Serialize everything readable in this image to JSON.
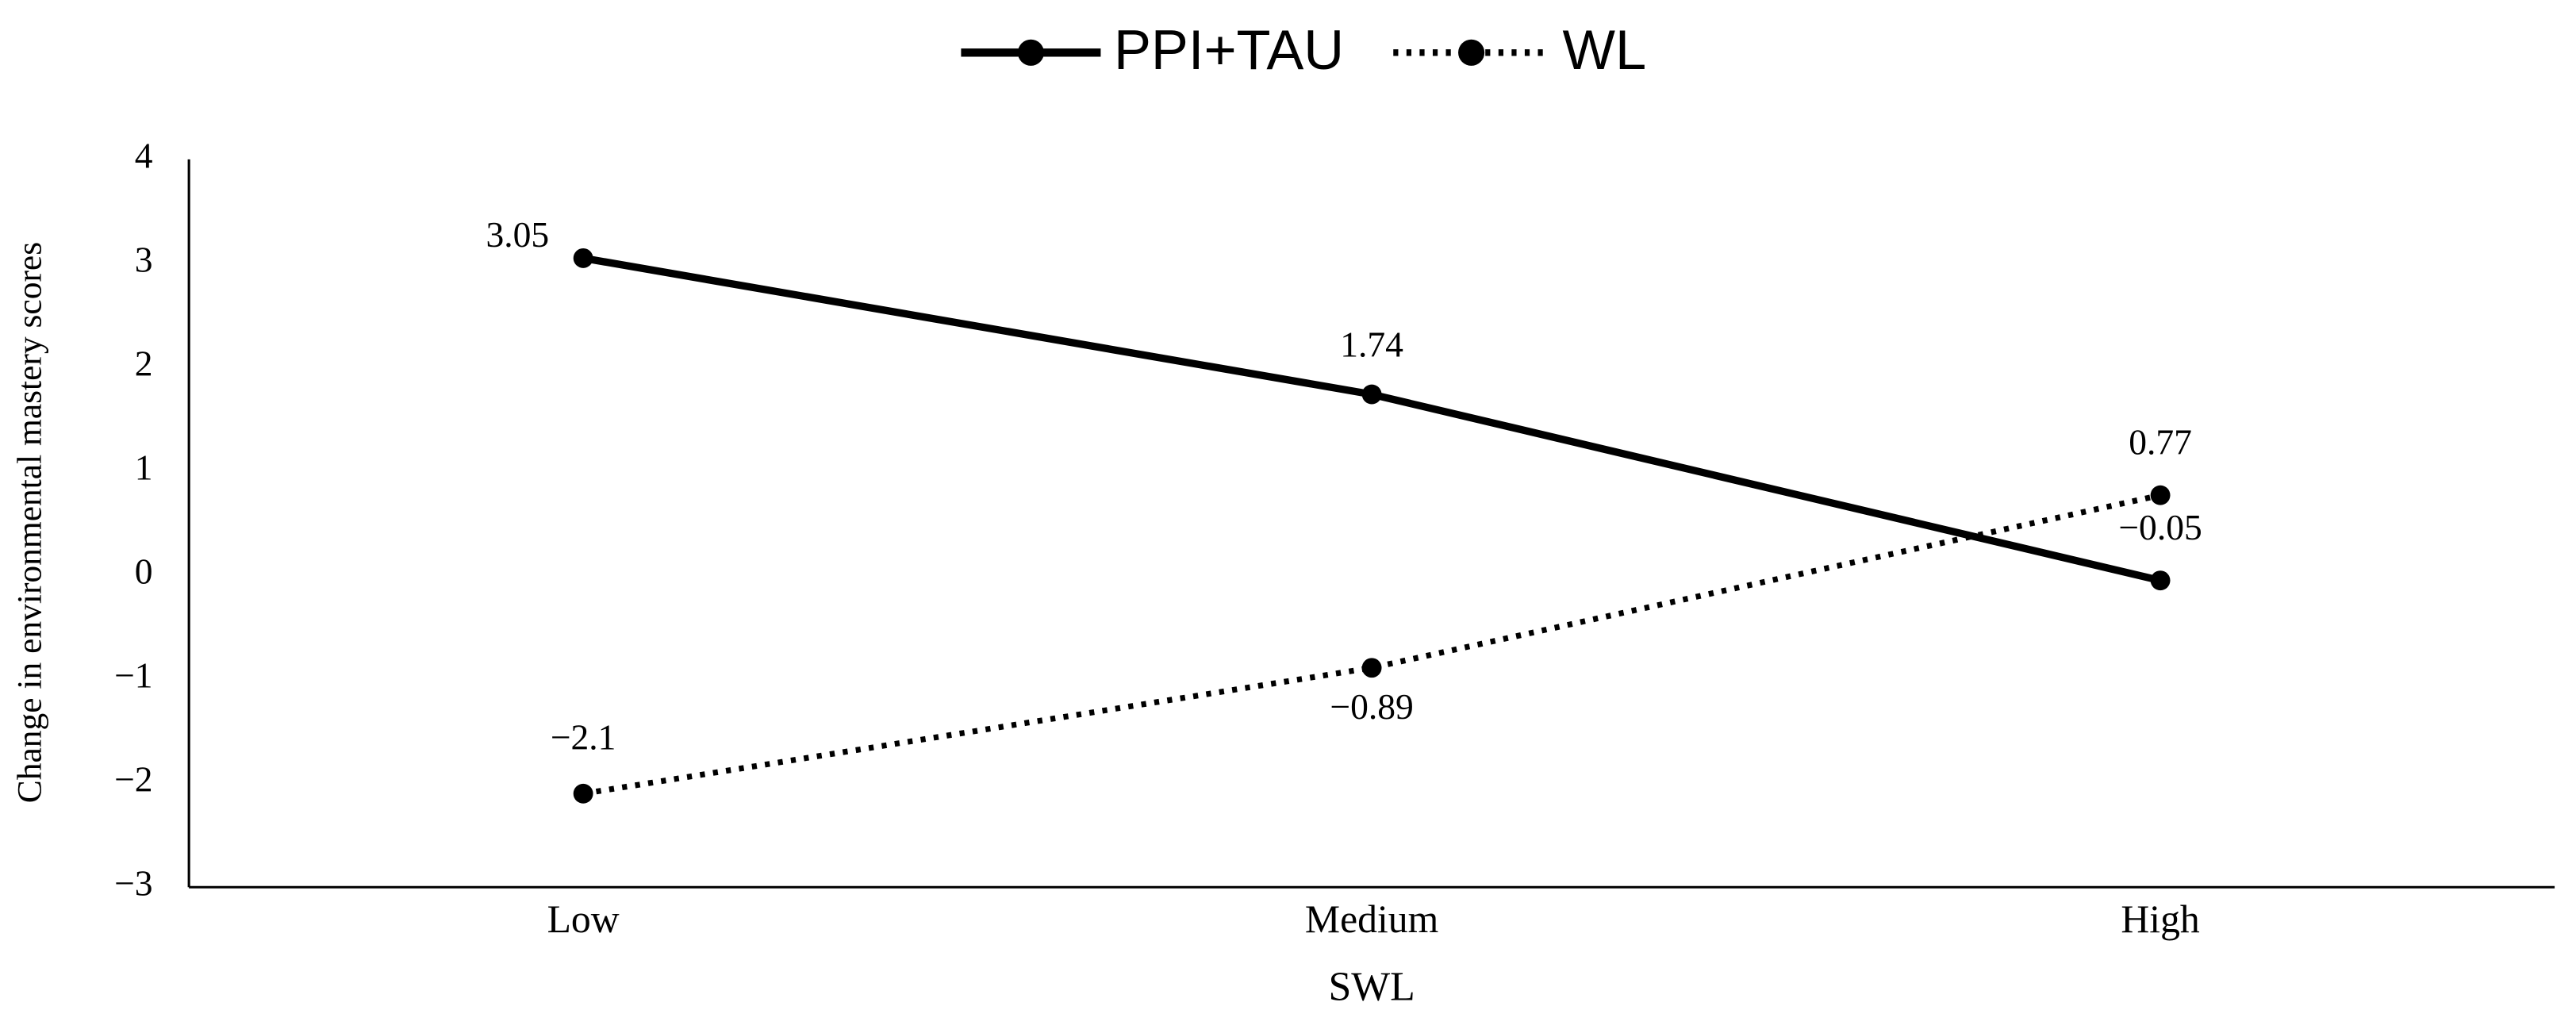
{
  "chart_data": {
    "type": "line",
    "x_label": "SWL",
    "y_label": "Change in environmental mastery scores",
    "categories": [
      "Low",
      "Medium",
      "High"
    ],
    "series": [
      {
        "name": "PPI+TAU",
        "color": "#000000",
        "style": "solid",
        "values": [
          3.05,
          1.74,
          -0.05
        ],
        "value_labels": [
          "3.05",
          "1.74",
          "−0.05"
        ]
      },
      {
        "name": "WL",
        "color": "#000000",
        "style": "dotted",
        "values": [
          -2.1,
          -0.89,
          0.77
        ],
        "value_labels": [
          "−2.1",
          "−0.89",
          "0.77"
        ]
      }
    ],
    "ylim": [
      -3,
      4
    ],
    "yticks": [
      {
        "value": -3,
        "label": "−3"
      },
      {
        "value": -2,
        "label": "−2"
      },
      {
        "value": -1,
        "label": "−1"
      },
      0,
      1,
      2,
      3,
      4
    ],
    "grid": false,
    "legend": "top"
  }
}
